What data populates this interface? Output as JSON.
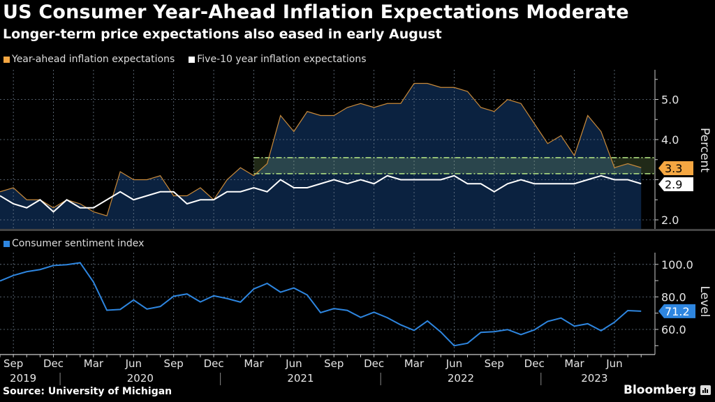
{
  "header": {
    "title": "US Consumer Year-Ahead Inflation Expectations Moderate",
    "subtitle": "Longer-term price expectations also eased in early August"
  },
  "footer": {
    "source": "Source: University of Michigan",
    "brand": "Bloomberg"
  },
  "colors": {
    "background": "#000000",
    "year_ahead": "#f5a742",
    "five_ten": "#ffffff",
    "area_fill": "#0b2240",
    "sentiment": "#2e86e0",
    "band": "#b8e986"
  },
  "chart_data": [
    {
      "type": "line",
      "title": "US Consumer Year-Ahead Inflation Expectations Moderate",
      "subtitle": "Longer-term price expectations also eased in early August",
      "ylabel": "Percent",
      "ylim": [
        1.8,
        5.7
      ],
      "yticks": [
        "2.0",
        "4.0",
        "5.0"
      ],
      "grid": true,
      "legend_position": "top-left",
      "x": [
        "2019-08",
        "2019-09",
        "2019-10",
        "2019-11",
        "2019-12",
        "2020-01",
        "2020-02",
        "2020-03",
        "2020-04",
        "2020-05",
        "2020-06",
        "2020-07",
        "2020-08",
        "2020-09",
        "2020-10",
        "2020-11",
        "2020-12",
        "2021-01",
        "2021-02",
        "2021-03",
        "2021-04",
        "2021-05",
        "2021-06",
        "2021-07",
        "2021-08",
        "2021-09",
        "2021-10",
        "2021-11",
        "2021-12",
        "2022-01",
        "2022-02",
        "2022-03",
        "2022-04",
        "2022-05",
        "2022-06",
        "2022-07",
        "2022-08",
        "2022-09",
        "2022-10",
        "2022-11",
        "2022-12",
        "2023-01",
        "2023-02",
        "2023-03",
        "2023-04",
        "2023-05",
        "2023-06",
        "2023-07",
        "2023-08"
      ],
      "series": [
        {
          "name": "Year-ahead inflation expectations",
          "style": "filled-area",
          "values": [
            2.7,
            2.8,
            2.5,
            2.5,
            2.3,
            2.5,
            2.4,
            2.2,
            2.1,
            3.2,
            3.0,
            3.0,
            3.1,
            2.6,
            2.6,
            2.8,
            2.5,
            3.0,
            3.3,
            3.1,
            3.4,
            4.6,
            4.2,
            4.7,
            4.6,
            4.6,
            4.8,
            4.9,
            4.8,
            4.9,
            4.9,
            5.4,
            5.4,
            5.3,
            5.3,
            5.2,
            4.8,
            4.7,
            5.0,
            4.9,
            4.4,
            3.9,
            4.1,
            3.6,
            4.6,
            4.2,
            3.3,
            3.4,
            3.3
          ],
          "last_label": "3.3"
        },
        {
          "name": "Five-10 year inflation expectations",
          "values": [
            2.6,
            2.4,
            2.3,
            2.5,
            2.2,
            2.5,
            2.3,
            2.3,
            2.5,
            2.7,
            2.5,
            2.6,
            2.7,
            2.7,
            2.4,
            2.5,
            2.5,
            2.7,
            2.7,
            2.8,
            2.7,
            3.0,
            2.8,
            2.8,
            2.9,
            3.0,
            2.9,
            3.0,
            2.9,
            3.1,
            3.0,
            3.0,
            3.0,
            3.0,
            3.1,
            2.9,
            2.9,
            2.7,
            2.9,
            3.0,
            2.9,
            2.9,
            2.9,
            2.9,
            3.0,
            3.1,
            3.0,
            3.0,
            2.9
          ],
          "last_label": "2.9"
        }
      ],
      "annotations": [
        {
          "type": "band",
          "from_x": "2021-03",
          "y_range": [
            3.15,
            3.55
          ],
          "color": "#b8e986",
          "note": "dash-dot highlighted range"
        }
      ]
    },
    {
      "type": "line",
      "ylabel": "Level",
      "ylim": [
        50,
        108
      ],
      "yticks": [
        "60.0",
        "80.0",
        "100.0"
      ],
      "grid": true,
      "legend_position": "top-left",
      "x_ref": "same as panel 1",
      "series": [
        {
          "name": "Consumer sentiment index",
          "values": [
            89.8,
            93.2,
            95.5,
            96.8,
            99.3,
            99.8,
            101.0,
            89.1,
            71.8,
            72.3,
            78.1,
            72.5,
            74.1,
            80.4,
            81.8,
            76.9,
            80.7,
            79.0,
            76.8,
            84.9,
            88.3,
            82.9,
            85.5,
            81.2,
            70.3,
            72.8,
            71.7,
            67.4,
            70.6,
            67.2,
            62.8,
            59.4,
            65.2,
            58.4,
            50.0,
            51.5,
            58.2,
            58.6,
            59.9,
            56.8,
            59.7,
            64.9,
            67.0,
            62.0,
            63.5,
            59.2,
            64.4,
            71.6,
            71.2
          ],
          "last_label": "71.2"
        }
      ]
    }
  ],
  "x_axis": {
    "month_labels": [
      "Sep",
      "Dec",
      "Mar",
      "Jun",
      "Sep",
      "Dec",
      "Mar",
      "Jun",
      "Sep",
      "Dec",
      "Mar",
      "Jun",
      "Sep",
      "Dec",
      "Mar",
      "Jun"
    ],
    "year_labels": [
      "2019",
      "2020",
      "2021",
      "2022",
      "2023"
    ]
  },
  "legend": {
    "top": [
      "Year-ahead inflation expectations",
      "Five-10 year inflation expectations"
    ],
    "bottom": [
      "Consumer sentiment index"
    ]
  },
  "axis_titles": {
    "top": "Percent",
    "bottom": "Level"
  }
}
